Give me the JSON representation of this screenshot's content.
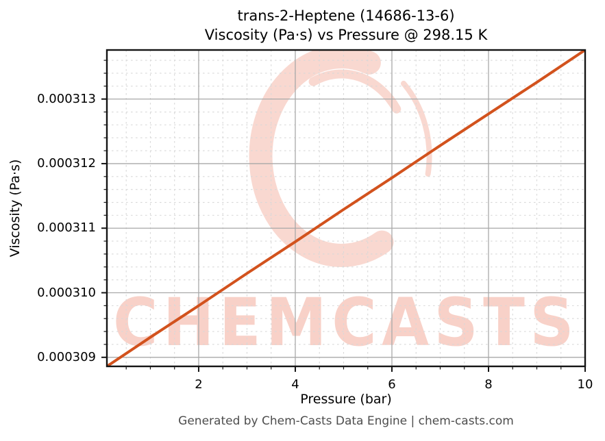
{
  "footer": {
    "text": "Generated by Chem-Casts Data Engine | chem-casts.com",
    "color": "#4d4d4d"
  },
  "watermark": {
    "text": "CHEMCASTS",
    "logo_icon": "brush-circle-logo",
    "ring_color": "#f9d8d0",
    "text_color": "#f8d1c8"
  },
  "chart_data": {
    "type": "line",
    "title": "trans-2-Heptene (14686-13-6)",
    "subtitle": "Viscosity (Pa·s) vs Pressure @ 298.15 K",
    "xlabel": "Pressure (bar)",
    "ylabel": "Viscosity (Pa·s)",
    "x": [
      0.1,
      1,
      2,
      3,
      4,
      5,
      6,
      7,
      8,
      9,
      10
    ],
    "series": [
      {
        "name": "Viscosity (Pa·s)",
        "values": [
          0.00030886,
          0.00030931,
          0.0003098,
          0.0003103,
          0.00031079,
          0.00031129,
          0.00031178,
          0.00031228,
          0.00031277,
          0.00031326,
          0.00031376
        ]
      }
    ],
    "xlim": [
      0.1,
      10
    ],
    "ylim": [
      0.00030886,
      0.00031376
    ],
    "xticks": [
      2,
      4,
      6,
      8,
      10
    ],
    "xtick_labels": [
      "2",
      "4",
      "6",
      "8",
      "10"
    ],
    "yticks": [
      0.000309,
      0.00031,
      0.000311,
      0.000312,
      0.000313
    ],
    "ytick_labels": [
      "0.000309",
      "0.000310",
      "0.000311",
      "0.000312",
      "0.000313"
    ],
    "x_minor_step": 0.5,
    "y_minor_step": 2e-07,
    "grid": true,
    "legend": false,
    "line_color": "#d2521d",
    "line_width": 4,
    "major_grid_color": "#a8a8a8",
    "minor_grid_color": "#d8d8d8",
    "spine_color": "#141414"
  }
}
